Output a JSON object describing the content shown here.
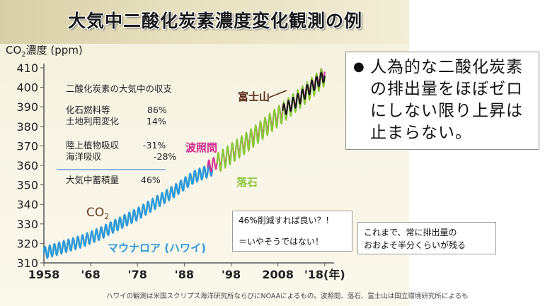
{
  "slide": {
    "title": "大気中二酸化炭素濃度変化観測の例",
    "footer": "ハワイの観測は米国スクリプス海洋研究所ならびにNOAAによるもの。波照間、落石、富士山は国立環境研究所によるも"
  },
  "budget": {
    "heading": "二酸化炭素の大気中の収支",
    "rows": [
      {
        "label": "化石燃料等",
        "value": "86%"
      },
      {
        "label": "土地利用変化",
        "value": "14%"
      },
      {
        "label": "陸上植物吸収",
        "value": "-31%"
      },
      {
        "label": "海洋吸収",
        "value": "-28%"
      },
      {
        "label": "大気中蓄積量",
        "value": "46%"
      }
    ]
  },
  "callout": {
    "bullet": "●",
    "text": "人為的な二酸化炭素の排出量をほぼゼロにしない限り上昇は止まらない。"
  },
  "note1": {
    "line1": "46%削減すれば良い？！",
    "line2": "＝いやそうではない！"
  },
  "note2": {
    "line1": "これまで、常に排出量の",
    "line2": "おおよそ半分くらいが残る"
  },
  "colors": {
    "mauna_loa": "#2f9ad6",
    "hateruma": "#d0288c",
    "ochiishi": "#8cc63f",
    "fuji": "#1a1a1a"
  },
  "chart_data": {
    "type": "line",
    "ylabel": "CO2濃度 (ppm)",
    "ylim": [
      310,
      410
    ],
    "yticks": [
      310,
      320,
      330,
      340,
      350,
      360,
      370,
      380,
      390,
      400,
      410
    ],
    "xlim": [
      1958,
      2020
    ],
    "xticks": [
      {
        "value": 1958,
        "label": "1958"
      },
      {
        "value": 1968,
        "label": "'68"
      },
      {
        "value": 1978,
        "label": "'78"
      },
      {
        "value": 1988,
        "label": "'88"
      },
      {
        "value": 1998,
        "label": "'98"
      },
      {
        "value": 2008,
        "label": "2008"
      },
      {
        "value": 2018,
        "label": "'18(年)"
      }
    ],
    "series": [
      {
        "name": "マウナロア (ハワイ)",
        "color_key": "mauna_loa",
        "x": [
          1958,
          1962,
          1966,
          1970,
          1974,
          1978,
          1982,
          1986,
          1990,
          1994
        ],
        "y": [
          315,
          318,
          321,
          325,
          330,
          335,
          341,
          347,
          354,
          358
        ]
      },
      {
        "name": "波照間",
        "color_key": "hateruma",
        "x": [
          1993,
          1996,
          2000,
          2004,
          2008,
          2012,
          2016,
          2018
        ],
        "y": [
          359,
          363,
          370,
          378,
          386,
          394,
          403,
          408
        ]
      },
      {
        "name": "落石",
        "color_key": "ochiishi",
        "x": [
          1995,
          1998,
          2002,
          2006,
          2010,
          2014,
          2018
        ],
        "y": [
          361,
          366,
          373,
          381,
          389,
          397,
          406
        ]
      },
      {
        "name": "富士山",
        "color_key": "fuji",
        "x": [
          2009,
          2012,
          2015,
          2018
        ],
        "y": [
          388,
          393,
          400,
          406
        ]
      }
    ],
    "series_labels": {
      "co2": "CO2"
    }
  }
}
